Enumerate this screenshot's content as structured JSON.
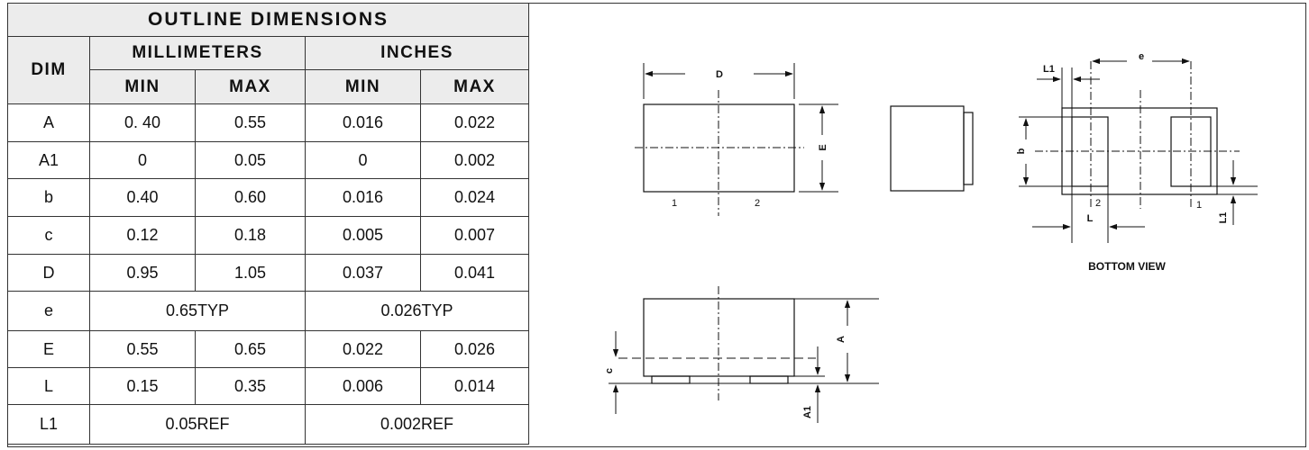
{
  "table": {
    "title": "OUTLINE DIMENSIONS",
    "dim_header": "DIM",
    "mm_header": "MILLIMETERS",
    "in_header": "INCHES",
    "min_label": "MIN",
    "max_label": "MAX",
    "rows": [
      {
        "dim": "A",
        "mm_min": "0. 40",
        "mm_max": "0.55",
        "in_min": "0.016",
        "in_max": "0.022"
      },
      {
        "dim": "A1",
        "mm_min": "0",
        "mm_max": "0.05",
        "in_min": "0",
        "in_max": "0.002"
      },
      {
        "dim": "b",
        "mm_min": "0.40",
        "mm_max": "0.60",
        "in_min": "0.016",
        "in_max": "0.024"
      },
      {
        "dim": "c",
        "mm_min": "0.12",
        "mm_max": "0.18",
        "in_min": "0.005",
        "in_max": "0.007"
      },
      {
        "dim": "D",
        "mm_min": "0.95",
        "mm_max": "1.05",
        "in_min": "0.037",
        "in_max": "0.041"
      },
      {
        "dim": "e",
        "mm_typ": "0.65TYP",
        "in_typ": "0.026TYP"
      },
      {
        "dim": "E",
        "mm_min": "0.55",
        "mm_max": "0.65",
        "in_min": "0.022",
        "in_max": "0.026"
      },
      {
        "dim": "L",
        "mm_min": "0.15",
        "mm_max": "0.35",
        "in_min": "0.006",
        "in_max": "0.014"
      },
      {
        "dim": "L1",
        "mm_typ": "0.05REF",
        "in_typ": "0.002REF"
      }
    ]
  },
  "drawing": {
    "top_view": {
      "dim_d": "D",
      "dim_e": "E",
      "pin1": "1",
      "pin2": "2"
    },
    "side_view": {
      "dim_a": "A",
      "dim_a1": "A1",
      "dim_c": "c"
    },
    "bottom_view": {
      "dim_l1_top": "L1",
      "dim_e_pitch": "e",
      "dim_b": "b",
      "dim_l": "L",
      "dim_l1_side": "L1",
      "pin2": "2",
      "pin1": "1",
      "caption": "BOTTOM VIEW"
    }
  }
}
